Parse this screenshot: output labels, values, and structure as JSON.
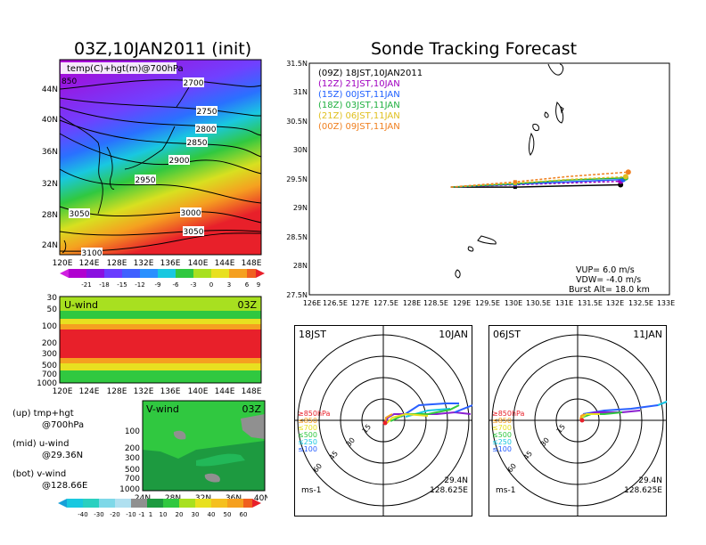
{
  "colors": {
    "purple": "#a000d0",
    "violet": "#6a3cff",
    "blue": "#2a60ff",
    "cyan": "#19c8e0",
    "green": "#2bc84a",
    "yellow": "#e8e020",
    "orange": "#f5a020",
    "red": "#e8202a"
  },
  "top_map": {
    "title": "03Z,10JAN2011 (init)",
    "overlay": "temp(C)+hgt(m)@700hPa",
    "lat_labels": [
      "44N",
      "40N",
      "36N",
      "32N",
      "28N",
      "24N"
    ],
    "lon_labels": [
      "120E",
      "124E",
      "128E",
      "132E",
      "136E",
      "140E",
      "144E",
      "148E"
    ],
    "contour_labels": [
      "2700",
      "2750",
      "2800",
      "2850",
      "2900",
      "2950",
      "3000",
      "3050",
      "3050",
      "3100"
    ],
    "partial_label": "850",
    "colorbar_ticks": [
      "-21",
      "-18",
      "-15",
      "-12",
      "-9",
      "-6",
      "-3",
      "0",
      "3",
      "6",
      "9"
    ]
  },
  "uwind": {
    "title": "U-wind",
    "time": "03Z",
    "p_labels": [
      "30",
      "50",
      "100",
      "200",
      "300",
      "500",
      "700",
      "1000"
    ],
    "lon_labels": [
      "120E",
      "124E",
      "128E",
      "132E",
      "136E",
      "140E",
      "144E",
      "148E"
    ]
  },
  "vwind": {
    "title": "V-wind",
    "time": "03Z",
    "p_labels": [
      "100",
      "200",
      "300",
      "500",
      "700",
      "1000"
    ],
    "lat_labels": [
      "24N",
      "28N",
      "32N",
      "36N",
      "40N"
    ],
    "colorbar_ticks": [
      "-40",
      "-30",
      "-20",
      "-10",
      "-1",
      "1",
      "10",
      "20",
      "30",
      "40",
      "50",
      "60"
    ]
  },
  "legend_notes": [
    "(up) tmp+hgt",
    "@700hPa",
    "(mid) u-wind",
    "@29.36N",
    "(bot) v-wind",
    "@128.66E"
  ],
  "track": {
    "title": "Sonde Tracking Forecast",
    "lat_labels": [
      "31.5N",
      "31N",
      "30.5N",
      "30N",
      "29.5N",
      "29N",
      "28.5N",
      "28N",
      "27.5N"
    ],
    "lon_labels": [
      "126E",
      "126.5E",
      "127E",
      "127.5E",
      "128E",
      "128.5E",
      "129E",
      "129.5E",
      "130E",
      "130.5E",
      "131E",
      "131.5E",
      "132E",
      "132.5E",
      "133E"
    ],
    "legend": [
      {
        "text": "(09Z)  18JST,10JAN2011",
        "color": "#000000"
      },
      {
        "text": "(12Z)  21JST,10JAN",
        "color": "#a000c0"
      },
      {
        "text": "(15Z)  00JST,11JAN",
        "color": "#2060ff"
      },
      {
        "text": "(18Z)  03JST,11JAN",
        "color": "#20b040"
      },
      {
        "text": "(21Z)  06JST,11JAN",
        "color": "#e0c020"
      },
      {
        "text": "(00Z)  09JST,11JAN",
        "color": "#f08020"
      }
    ],
    "info": [
      "VUP=  6.0  m/s",
      "VDW= -4.0  m/s",
      "Burst Alt=  18.0  km"
    ]
  },
  "hodo_left": {
    "time_left": "18JST",
    "time_right": "10JAN",
    "rings": [
      "15",
      "30",
      "45",
      "60"
    ],
    "levels": [
      "≥850hPa",
      "≤850",
      "≤700",
      "≤500",
      "≤250",
      "≤100"
    ],
    "unit": "ms-1",
    "lat": "29.4N",
    "lon": "128.625E"
  },
  "hodo_right": {
    "time_left": "06JST",
    "time_right": "11JAN",
    "rings": [
      "15",
      "30",
      "45",
      "60"
    ],
    "levels": [
      "≥850hPa",
      "≤850",
      "≤700",
      "≤500",
      "≤250",
      "≤100"
    ],
    "unit": "ms-1",
    "lat": "29.4N",
    "lon": "128.625E"
  },
  "chart_data": [
    {
      "type": "line",
      "title": "Sonde Tracking Forecast",
      "xlim": [
        126,
        133
      ],
      "ylim": [
        27.5,
        31.5
      ],
      "series": [
        {
          "name": "(09Z)  18JST,10JAN2011",
          "x": [
            128.75,
            130.0,
            131.0,
            132.05
          ],
          "y": [
            29.36,
            29.36,
            29.38,
            29.4
          ]
        },
        {
          "name": "(12Z)  21JST,10JAN",
          "x": [
            128.75,
            130.0,
            131.0,
            132.05
          ],
          "y": [
            29.36,
            29.4,
            29.43,
            29.46
          ]
        },
        {
          "name": "(15Z)  00JST,11JAN",
          "x": [
            128.75,
            130.0,
            131.0,
            132.1
          ],
          "y": [
            29.36,
            29.41,
            29.45,
            29.49
          ]
        },
        {
          "name": "(18Z)  03JST,11JAN",
          "x": [
            128.75,
            130.0,
            131.0,
            132.15
          ],
          "y": [
            29.36,
            29.42,
            29.48,
            29.52
          ]
        },
        {
          "name": "(21Z)  06JST,11JAN",
          "x": [
            128.75,
            130.0,
            131.0,
            132.15
          ],
          "y": [
            29.36,
            29.43,
            29.49,
            29.54
          ]
        },
        {
          "name": "(00Z)  09JST,11JAN",
          "x": [
            128.75,
            130.0,
            131.0,
            132.2
          ],
          "y": [
            29.36,
            29.45,
            29.54,
            29.62
          ]
        }
      ]
    }
  ]
}
